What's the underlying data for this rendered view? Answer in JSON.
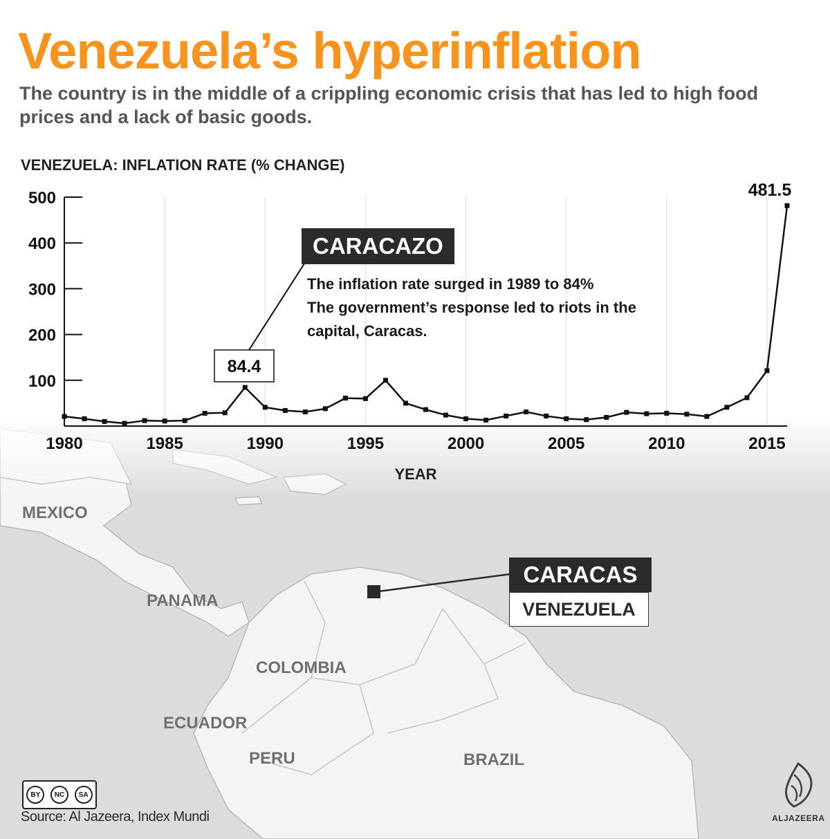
{
  "header": {
    "title": "Venezuela’s hyperinflation",
    "subtitle": "The country is in the middle of a crippling economic crisis that has led to high food prices and a lack of basic goods."
  },
  "colors": {
    "accent": "#f7941d",
    "line": "#111111",
    "annotation_bg": "#2b2b2b",
    "map_land": "#f4f4f4",
    "map_sea": "#dcdcdc"
  },
  "chart_data": {
    "type": "line",
    "title": "VENEZUELA: INFLATION RATE (% CHANGE)",
    "xlabel": "YEAR",
    "ylabel": "",
    "xlim": [
      1980,
      2016
    ],
    "ylim": [
      0,
      500
    ],
    "x_ticks": [
      1980,
      1985,
      1990,
      1995,
      2000,
      2005,
      2010,
      2015
    ],
    "y_ticks": [
      100,
      200,
      300,
      400,
      500
    ],
    "grid": "vertical",
    "series": [
      {
        "name": "Inflation rate",
        "x": [
          1980,
          1981,
          1982,
          1983,
          1984,
          1985,
          1986,
          1987,
          1988,
          1989,
          1990,
          1991,
          1992,
          1993,
          1994,
          1995,
          1996,
          1997,
          1998,
          1999,
          2000,
          2001,
          2002,
          2003,
          2004,
          2005,
          2006,
          2007,
          2008,
          2009,
          2010,
          2011,
          2012,
          2013,
          2014,
          2015,
          2016
        ],
        "values": [
          21,
          16,
          10,
          6,
          12,
          11,
          12,
          28,
          29,
          84.4,
          41,
          34,
          31,
          38,
          61,
          60,
          100,
          50,
          36,
          24,
          16,
          13,
          22,
          31,
          22,
          16,
          14,
          19,
          30,
          27,
          28,
          26,
          21,
          41,
          62,
          121,
          481.5
        ]
      }
    ],
    "data_labels": [
      {
        "x": 1989,
        "label": "84.4"
      },
      {
        "x": 2016,
        "label": "481.5"
      }
    ],
    "annotation": {
      "heading": "CARACAZO",
      "lines": [
        "The inflation rate surged in 1989 to 84%",
        "The government’s response led to riots in the",
        "capital, Caracas."
      ]
    }
  },
  "map": {
    "marker": {
      "title": "CARACAS",
      "subtitle": "VENEZUELA"
    },
    "countries": [
      "MEXICO",
      "PANAMA",
      "COLOMBIA",
      "ECUADOR",
      "PERU",
      "BRAZIL"
    ]
  },
  "footer": {
    "license_labels": [
      "BY",
      "NC",
      "SA"
    ],
    "source": "Source: Al Jazeera, Index Mundi",
    "logo_text": "ALJAZEERA"
  }
}
